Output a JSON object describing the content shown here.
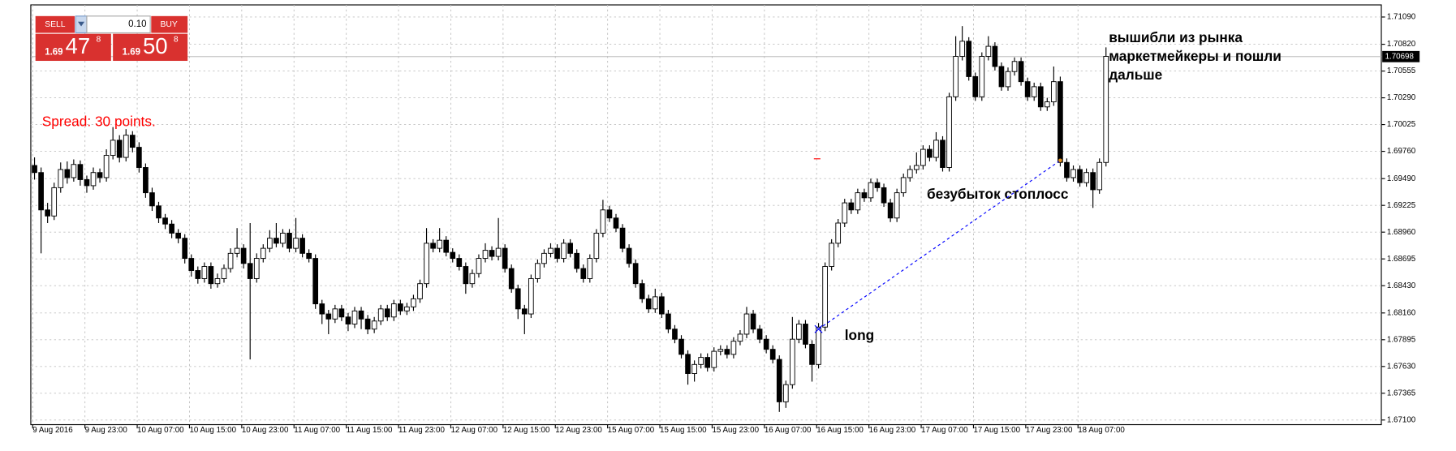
{
  "trade_panel": {
    "sell": "SELL",
    "lot": "0.10",
    "buy": "BUY",
    "bid": {
      "big": "1.69",
      "main": "47",
      "small": "8"
    },
    "ask": {
      "big": "1.69",
      "main": "50",
      "small": "8"
    }
  },
  "spread": "Spread: 30 points.",
  "chart_data": {
    "type": "candlestick",
    "categories": [
      "9 Aug 2016",
      null,
      null,
      null,
      null,
      null,
      null,
      null,
      "9 Aug 23:00",
      null,
      null,
      null,
      null,
      null,
      null,
      null,
      "10 Aug 07:00",
      null,
      null,
      null,
      null,
      null,
      null,
      null,
      "10 Aug 15:00",
      null,
      null,
      null,
      null,
      null,
      null,
      null,
      "10 Aug 23:00",
      null,
      null,
      null,
      null,
      null,
      null,
      null,
      "11 Aug 07:00",
      null,
      null,
      null,
      null,
      null,
      null,
      null,
      "11 Aug 15:00",
      null,
      null,
      null,
      null,
      null,
      null,
      null,
      "11 Aug 23:00",
      null,
      null,
      null,
      null,
      null,
      null,
      null,
      "12 Aug 07:00",
      null,
      null,
      null,
      null,
      null,
      null,
      null,
      "12 Aug 15:00",
      null,
      null,
      null,
      null,
      null,
      null,
      null,
      "12 Aug 23:00",
      null,
      null,
      null,
      null,
      null,
      null,
      null,
      "15 Aug 07:00",
      null,
      null,
      null,
      null,
      null,
      null,
      null,
      "15 Aug 15:00",
      null,
      null,
      null,
      null,
      null,
      null,
      null,
      "15 Aug 23:00",
      null,
      null,
      null,
      null,
      null,
      null,
      null,
      "16 Aug 07:00",
      null,
      null,
      null,
      null,
      null,
      null,
      null,
      "16 Aug 15:00",
      null,
      null,
      null,
      null,
      null,
      null,
      null,
      "16 Aug 23:00",
      null,
      null,
      null,
      null,
      null,
      null,
      null,
      "17 Aug 07:00",
      null,
      null,
      null,
      null,
      null,
      null,
      null,
      "17 Aug 15:00",
      null,
      null,
      null,
      null,
      null,
      null,
      null,
      "17 Aug 23:00",
      null,
      null,
      null,
      null,
      null,
      null,
      null,
      "18 Aug 07:00",
      null,
      null,
      null,
      null
    ],
    "ohlc": [
      [
        1.6962,
        1.697,
        1.6948,
        1.6955
      ],
      [
        1.6955,
        1.696,
        1.6875,
        1.6918
      ],
      [
        1.6918,
        1.6925,
        1.6905,
        1.6912
      ],
      [
        1.6912,
        1.6945,
        1.6908,
        1.694
      ],
      [
        1.694,
        1.6965,
        1.6935,
        1.6958
      ],
      [
        1.6958,
        1.6966,
        1.6944,
        1.695
      ],
      [
        1.695,
        1.6968,
        1.6946,
        1.6963
      ],
      [
        1.6963,
        1.6967,
        1.6942,
        1.6948
      ],
      [
        1.6948,
        1.6952,
        1.6935,
        1.6942
      ],
      [
        1.6942,
        1.696,
        1.6938,
        1.6955
      ],
      [
        1.6955,
        1.6959,
        1.6945,
        1.695
      ],
      [
        1.695,
        1.6978,
        1.6946,
        1.6972
      ],
      [
        1.6972,
        1.7,
        1.6968,
        1.6987
      ],
      [
        1.6987,
        1.6992,
        1.6965,
        1.697
      ],
      [
        1.697,
        1.6998,
        1.6966,
        1.6992
      ],
      [
        1.6992,
        1.6996,
        1.6975,
        1.698
      ],
      [
        1.698,
        1.6985,
        1.6955,
        1.696
      ],
      [
        1.696,
        1.6964,
        1.693,
        1.6935
      ],
      [
        1.6935,
        1.694,
        1.6917,
        1.6922
      ],
      [
        1.6922,
        1.6926,
        1.6905,
        1.691
      ],
      [
        1.691,
        1.6914,
        1.6899,
        1.6904
      ],
      [
        1.6904,
        1.6908,
        1.689,
        1.6895
      ],
      [
        1.6895,
        1.6899,
        1.6885,
        1.689
      ],
      [
        1.689,
        1.6894,
        1.6865,
        1.687
      ],
      [
        1.687,
        1.6874,
        1.6852,
        1.6858
      ],
      [
        1.6858,
        1.6862,
        1.6845,
        1.685
      ],
      [
        1.685,
        1.6866,
        1.6846,
        1.6862
      ],
      [
        1.6862,
        1.6866,
        1.684,
        1.6845
      ],
      [
        1.6845,
        1.6855,
        1.6841,
        1.685
      ],
      [
        1.685,
        1.6864,
        1.6846,
        1.686
      ],
      [
        1.686,
        1.688,
        1.6856,
        1.6875
      ],
      [
        1.6875,
        1.69,
        1.6871,
        1.688
      ],
      [
        1.688,
        1.6884,
        1.686,
        1.6865
      ],
      [
        1.6865,
        1.6905,
        1.677,
        1.685
      ],
      [
        1.685,
        1.6875,
        1.6846,
        1.687
      ],
      [
        1.687,
        1.6884,
        1.6866,
        1.688
      ],
      [
        1.688,
        1.6898,
        1.6876,
        1.689
      ],
      [
        1.689,
        1.6905,
        1.6881,
        1.6885
      ],
      [
        1.6885,
        1.6899,
        1.6881,
        1.6895
      ],
      [
        1.6895,
        1.6899,
        1.6876,
        1.688
      ],
      [
        1.688,
        1.691,
        1.6876,
        1.689
      ],
      [
        1.689,
        1.6894,
        1.6871,
        1.6875
      ],
      [
        1.6875,
        1.6879,
        1.6866,
        1.687
      ],
      [
        1.687,
        1.6874,
        1.682,
        1.6825
      ],
      [
        1.6825,
        1.6829,
        1.6805,
        1.6815
      ],
      [
        1.6815,
        1.6819,
        1.6795,
        1.681
      ],
      [
        1.681,
        1.6824,
        1.6806,
        1.682
      ],
      [
        1.682,
        1.6824,
        1.6808,
        1.6812
      ],
      [
        1.6812,
        1.6816,
        1.6798,
        1.6805
      ],
      [
        1.6805,
        1.6822,
        1.6801,
        1.6818
      ],
      [
        1.6818,
        1.6822,
        1.68,
        1.681
      ],
      [
        1.681,
        1.6814,
        1.6795,
        1.68
      ],
      [
        1.68,
        1.6812,
        1.6796,
        1.6808
      ],
      [
        1.6808,
        1.6824,
        1.6804,
        1.682
      ],
      [
        1.682,
        1.6824,
        1.6808,
        1.6812
      ],
      [
        1.6812,
        1.6829,
        1.6808,
        1.6825
      ],
      [
        1.6825,
        1.6829,
        1.6814,
        1.6818
      ],
      [
        1.6818,
        1.6826,
        1.6814,
        1.6822
      ],
      [
        1.6822,
        1.6834,
        1.6818,
        1.683
      ],
      [
        1.683,
        1.6849,
        1.6826,
        1.6845
      ],
      [
        1.6845,
        1.69,
        1.6841,
        1.6885
      ],
      [
        1.6885,
        1.6889,
        1.6876,
        1.688
      ],
      [
        1.688,
        1.69,
        1.6876,
        1.6888
      ],
      [
        1.6888,
        1.6892,
        1.6872,
        1.6876
      ],
      [
        1.6876,
        1.688,
        1.6866,
        1.687
      ],
      [
        1.687,
        1.6874,
        1.6858,
        1.6862
      ],
      [
        1.6862,
        1.6866,
        1.6835,
        1.6845
      ],
      [
        1.6845,
        1.6859,
        1.6841,
        1.6855
      ],
      [
        1.6855,
        1.6874,
        1.6851,
        1.687
      ],
      [
        1.687,
        1.6885,
        1.6866,
        1.6878
      ],
      [
        1.6878,
        1.6882,
        1.6868,
        1.6872
      ],
      [
        1.6872,
        1.691,
        1.6868,
        1.688
      ],
      [
        1.688,
        1.6884,
        1.6856,
        1.686
      ],
      [
        1.686,
        1.6864,
        1.6836,
        1.684
      ],
      [
        1.684,
        1.6844,
        1.681,
        1.682
      ],
      [
        1.682,
        1.6824,
        1.6795,
        1.6815
      ],
      [
        1.6815,
        1.6854,
        1.6811,
        1.685
      ],
      [
        1.685,
        1.6869,
        1.6846,
        1.6865
      ],
      [
        1.6865,
        1.6879,
        1.6861,
        1.6875
      ],
      [
        1.6875,
        1.6885,
        1.6871,
        1.688
      ],
      [
        1.688,
        1.6884,
        1.6866,
        1.687
      ],
      [
        1.687,
        1.6889,
        1.6866,
        1.6885
      ],
      [
        1.6885,
        1.6889,
        1.6871,
        1.6875
      ],
      [
        1.6875,
        1.6879,
        1.6856,
        1.686
      ],
      [
        1.686,
        1.6864,
        1.6846,
        1.685
      ],
      [
        1.685,
        1.6874,
        1.6846,
        1.687
      ],
      [
        1.687,
        1.6899,
        1.6866,
        1.6895
      ],
      [
        1.6895,
        1.6928,
        1.6891,
        1.6918
      ],
      [
        1.6918,
        1.6922,
        1.6906,
        1.691
      ],
      [
        1.691,
        1.6914,
        1.6896,
        1.69
      ],
      [
        1.69,
        1.6904,
        1.6876,
        1.688
      ],
      [
        1.688,
        1.6884,
        1.6861,
        1.6865
      ],
      [
        1.6865,
        1.6869,
        1.6841,
        1.6845
      ],
      [
        1.6845,
        1.6849,
        1.6826,
        1.683
      ],
      [
        1.683,
        1.6834,
        1.6816,
        1.682
      ],
      [
        1.682,
        1.684,
        1.6816,
        1.6832
      ],
      [
        1.6832,
        1.6836,
        1.6811,
        1.6815
      ],
      [
        1.6815,
        1.6819,
        1.6796,
        1.68
      ],
      [
        1.68,
        1.6804,
        1.6786,
        1.679
      ],
      [
        1.679,
        1.6794,
        1.6771,
        1.6775
      ],
      [
        1.6775,
        1.6779,
        1.6745,
        1.6756
      ],
      [
        1.6756,
        1.6769,
        1.6748,
        1.6765
      ],
      [
        1.6765,
        1.6776,
        1.6761,
        1.6772
      ],
      [
        1.6772,
        1.6776,
        1.6758,
        1.6762
      ],
      [
        1.6762,
        1.6782,
        1.6758,
        1.6778
      ],
      [
        1.6778,
        1.6784,
        1.6774,
        1.678
      ],
      [
        1.678,
        1.6784,
        1.6771,
        1.6775
      ],
      [
        1.6775,
        1.6792,
        1.6771,
        1.6788
      ],
      [
        1.6788,
        1.6799,
        1.6784,
        1.6795
      ],
      [
        1.6795,
        1.6822,
        1.6791,
        1.6815
      ],
      [
        1.6815,
        1.6819,
        1.6796,
        1.68
      ],
      [
        1.68,
        1.6804,
        1.6786,
        1.679
      ],
      [
        1.679,
        1.6794,
        1.6776,
        1.678
      ],
      [
        1.678,
        1.6784,
        1.6766,
        1.677
      ],
      [
        1.677,
        1.6774,
        1.6718,
        1.6728
      ],
      [
        1.6728,
        1.6749,
        1.6722,
        1.6745
      ],
      [
        1.6745,
        1.6812,
        1.6741,
        1.679
      ],
      [
        1.679,
        1.6809,
        1.6786,
        1.6805
      ],
      [
        1.6805,
        1.6809,
        1.6781,
        1.6785
      ],
      [
        1.6785,
        1.6789,
        1.6748,
        1.6765
      ],
      [
        1.6765,
        1.6806,
        1.6761,
        1.6802
      ],
      [
        1.6802,
        1.6866,
        1.6798,
        1.6862
      ],
      [
        1.6862,
        1.6889,
        1.6858,
        1.6885
      ],
      [
        1.6885,
        1.6909,
        1.6881,
        1.6905
      ],
      [
        1.6905,
        1.6929,
        1.6901,
        1.6925
      ],
      [
        1.6925,
        1.6929,
        1.6914,
        1.6918
      ],
      [
        1.6918,
        1.6939,
        1.6914,
        1.6935
      ],
      [
        1.6935,
        1.6939,
        1.6926,
        1.693
      ],
      [
        1.693,
        1.6949,
        1.6926,
        1.6945
      ],
      [
        1.6945,
        1.6949,
        1.6936,
        1.694
      ],
      [
        1.694,
        1.6944,
        1.6921,
        1.6925
      ],
      [
        1.6925,
        1.6929,
        1.6906,
        1.691
      ],
      [
        1.691,
        1.6939,
        1.6906,
        1.6935
      ],
      [
        1.6935,
        1.6954,
        1.6931,
        1.695
      ],
      [
        1.695,
        1.6962,
        1.6946,
        1.6958
      ],
      [
        1.6958,
        1.6975,
        1.6954,
        1.6962
      ],
      [
        1.6962,
        1.6982,
        1.6958,
        1.6978
      ],
      [
        1.6978,
        1.6982,
        1.6966,
        1.697
      ],
      [
        1.697,
        1.6995,
        1.6966,
        1.6987
      ],
      [
        1.6987,
        1.6991,
        1.6956,
        1.696
      ],
      [
        1.696,
        1.7034,
        1.6956,
        1.703
      ],
      [
        1.703,
        1.709,
        1.7026,
        1.707
      ],
      [
        1.707,
        1.71,
        1.7066,
        1.7085
      ],
      [
        1.7085,
        1.7089,
        1.7046,
        1.705
      ],
      [
        1.705,
        1.7054,
        1.7026,
        1.703
      ],
      [
        1.703,
        1.7074,
        1.7026,
        1.707
      ],
      [
        1.707,
        1.709,
        1.7066,
        1.708
      ],
      [
        1.708,
        1.7084,
        1.7056,
        1.706
      ],
      [
        1.706,
        1.7064,
        1.7036,
        1.704
      ],
      [
        1.704,
        1.7059,
        1.7036,
        1.7055
      ],
      [
        1.7055,
        1.7069,
        1.7051,
        1.7065
      ],
      [
        1.7065,
        1.7069,
        1.7041,
        1.7045
      ],
      [
        1.7045,
        1.7049,
        1.7026,
        1.703
      ],
      [
        1.703,
        1.7044,
        1.7026,
        1.704
      ],
      [
        1.704,
        1.7044,
        1.7016,
        1.702
      ],
      [
        1.702,
        1.7029,
        1.7016,
        1.7025
      ],
      [
        1.7025,
        1.706,
        1.7021,
        1.7045
      ],
      [
        1.7045,
        1.705,
        1.6961,
        1.6965
      ],
      [
        1.6965,
        1.6969,
        1.6946,
        1.695
      ],
      [
        1.695,
        1.6962,
        1.6946,
        1.6958
      ],
      [
        1.6958,
        1.6962,
        1.6941,
        1.6945
      ],
      [
        1.6945,
        1.6959,
        1.6941,
        1.6955
      ],
      [
        1.6955,
        1.6959,
        1.692,
        1.6938
      ],
      [
        1.6938,
        1.6969,
        1.6934,
        1.6965
      ],
      [
        1.6965,
        1.7079,
        1.6961,
        1.707
      ]
    ],
    "ylim": [
      1.67054,
      1.7121
    ],
    "yticks": [
      {
        "value": 1.7109,
        "label": "1.71090"
      },
      {
        "value": 1.7082,
        "label": "1.70820"
      },
      1.70555,
      {
        "value": 1.7029,
        "label": "1.70290"
      },
      1.70025,
      {
        "value": 1.6976,
        "label": "1.69760"
      },
      {
        "value": 1.6949,
        "label": "1.69490"
      },
      1.69225,
      {
        "value": 1.6896,
        "label": "1.68960"
      },
      1.68695,
      {
        "value": 1.6843,
        "label": "1.68430"
      },
      {
        "value": 1.6816,
        "label": "1.68160"
      },
      1.67895,
      {
        "value": 1.6763,
        "label": "1.67630"
      },
      1.67365,
      {
        "value": 1.671,
        "label": "1.67100"
      }
    ],
    "grid": true,
    "current_price": 1.70698,
    "trade_line": [
      1.68,
      1.6967
    ],
    "annotations": [
      "long",
      "безубыток стоплосс",
      "вышибли из рынка",
      "маркетмейкеры и пошли",
      "дальше"
    ]
  }
}
